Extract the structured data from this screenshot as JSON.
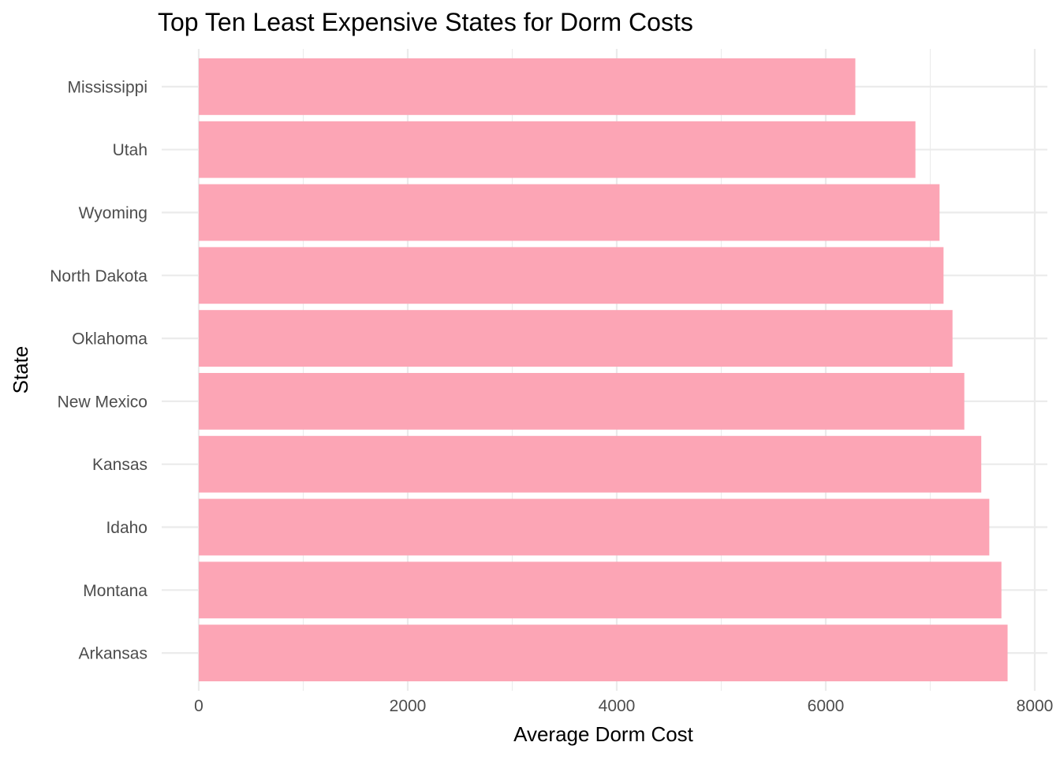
{
  "chart_data": {
    "type": "bar",
    "orientation": "horizontal",
    "title": "Top Ten Least Expensive States for Dorm Costs",
    "xlabel": "Average Dorm Cost",
    "ylabel": "State",
    "categories": [
      "Mississippi",
      "Utah",
      "Wyoming",
      "North Dakota",
      "Oklahoma",
      "New Mexico",
      "Kansas",
      "Idaho",
      "Montana",
      "Arkansas"
    ],
    "values": [
      6283,
      6858,
      7089,
      7127,
      7213,
      7326,
      7488,
      7565,
      7681,
      7740
    ],
    "xlim": [
      0,
      8100
    ],
    "xticks": [
      0,
      2000,
      4000,
      6000,
      8000
    ],
    "xtick_labels": [
      "0",
      "2000",
      "4000",
      "6000",
      "8000"
    ],
    "bar_color": "#fca5b5",
    "grid": true,
    "legend": "none"
  }
}
